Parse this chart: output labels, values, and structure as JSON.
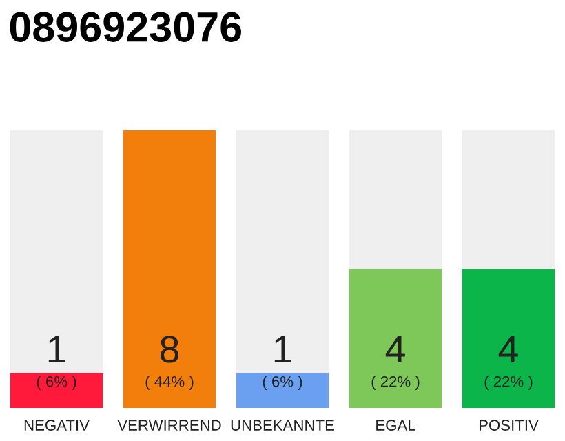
{
  "chart_data": {
    "type": "bar",
    "title": "0896923076",
    "categories": [
      "NEGATIV",
      "VERWIRREND",
      "UNBEKANNTE",
      "EGAL",
      "POSITIV"
    ],
    "values": [
      1,
      8,
      1,
      4,
      4
    ],
    "colors": [
      "#ff1a3c",
      "#f27e0c",
      "#6aa0ef",
      "#7ec85a",
      "#0cb54a"
    ],
    "ylim": [
      0,
      8
    ],
    "data_labels": true,
    "grid": false,
    "legend": false,
    "annotations": [
      "( 6% )",
      "( 44% )",
      "( 6% )",
      "( 22% )",
      "( 22% )"
    ]
  }
}
